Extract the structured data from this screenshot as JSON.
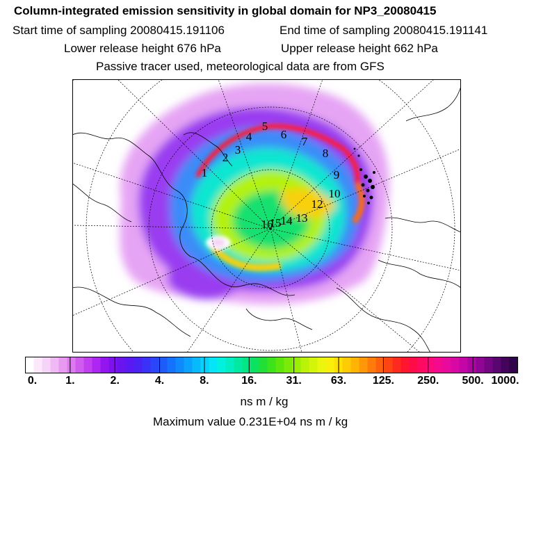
{
  "header": {
    "title": "Column-integrated emission sensitivity in global domain for NP3_20080415",
    "start_time": "Start time of sampling 20080415.191106",
    "end_time": "End time of sampling 20080415.191141",
    "lower_height": "Lower release height  676 hPa",
    "upper_height": "Upper release height  662 hPa",
    "tracer_note": "Passive tracer used, meteorological data are from GFS"
  },
  "map": {
    "projection": "north-polar-stereographic",
    "trajectory_labels": [
      "1",
      "2",
      "3",
      "4",
      "5",
      "6",
      "7",
      "8",
      "9",
      "10",
      "12",
      "13",
      "14",
      "15",
      "16"
    ]
  },
  "colorbar": {
    "tick_labels": [
      "0.",
      "1.",
      "2.",
      "4.",
      "8.",
      "16.",
      "31.",
      "63.",
      "125.",
      "250.",
      "500.",
      "1000."
    ],
    "colors": [
      "#ffffff",
      "#fbe9fb",
      "#f6d3f8",
      "#f0b8f4",
      "#e79af0",
      "#dc7aee",
      "#cf5cef",
      "#c040f0",
      "#ad26f2",
      "#9315f0",
      "#7d12ee",
      "#6a14ee",
      "#5a18f2",
      "#4a22f4",
      "#3a32f6",
      "#2a46f8",
      "#1e5cfa",
      "#1472fc",
      "#0e8afc",
      "#0aa2fc",
      "#08bafc",
      "#06d2fc",
      "#04e6f6",
      "#02f0de",
      "#02eec2",
      "#02eaa2",
      "#04e682",
      "#0ce260",
      "#20e038",
      "#3ce21a",
      "#5ce60c",
      "#7cea08",
      "#9cee08",
      "#baf208",
      "#d4f40a",
      "#eaf60e",
      "#f8f00a",
      "#fee006",
      "#ffcc04",
      "#ffb404",
      "#ff9806",
      "#ff7c0a",
      "#ff600e",
      "#ff4414",
      "#ff2a1e",
      "#ff162e",
      "#ff0c48",
      "#ff0a62",
      "#fc0a7a",
      "#f40a8e",
      "#e80a9c",
      "#d808a4",
      "#c406a6",
      "#ac06a0",
      "#900694",
      "#740684",
      "#5a0670",
      "#44045c",
      "#30044a"
    ],
    "units": "ns m / kg"
  },
  "maximum": "Maximum value  0.231E+04 ns m / kg"
}
